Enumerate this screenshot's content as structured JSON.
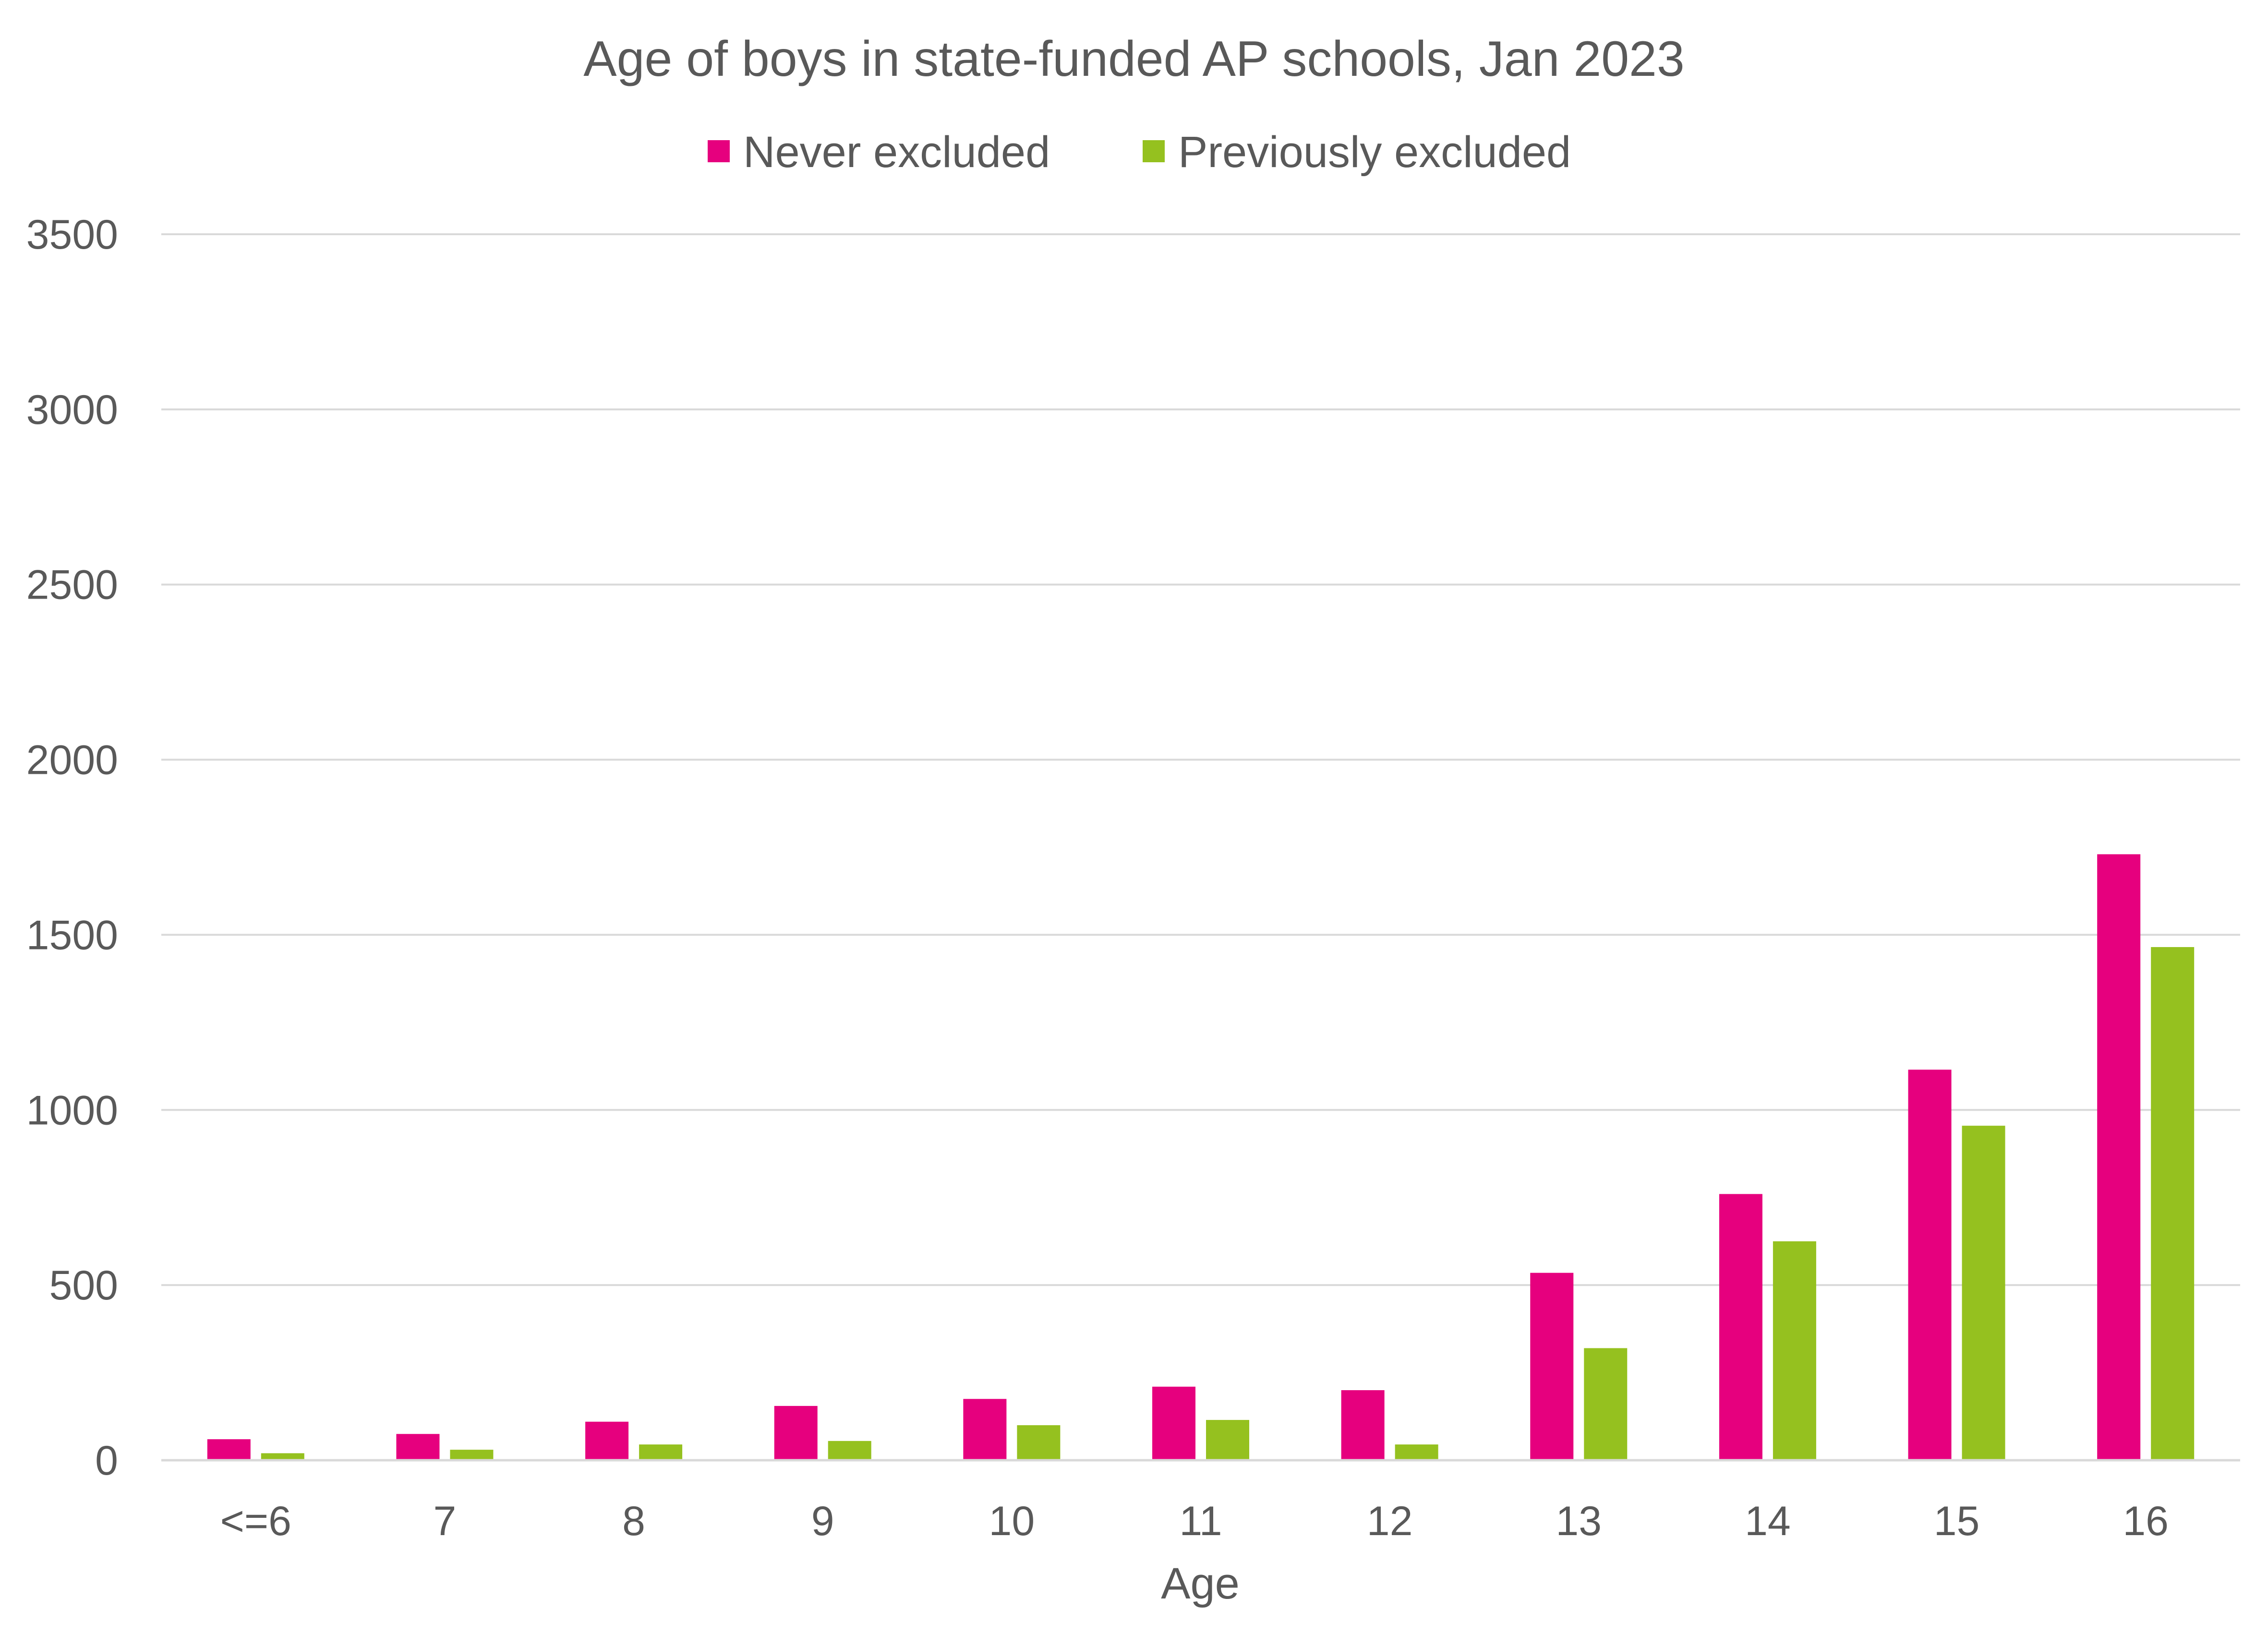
{
  "chart_data": {
    "type": "bar",
    "title": "Age of boys in state-funded AP schools, Jan 2023",
    "xlabel": "Age",
    "ylabel": "",
    "categories": [
      "<=6",
      "7",
      "8",
      "9",
      "10",
      "11",
      "12",
      "13",
      "14",
      "15",
      "16"
    ],
    "series": [
      {
        "name": "Never excluded",
        "color": "#e6007e",
        "values": [
          60,
          75,
          110,
          155,
          175,
          210,
          200,
          535,
          760,
          1115,
          1730
        ]
      },
      {
        "name": "Previously excluded",
        "color": "#95c11f",
        "values": [
          20,
          30,
          45,
          55,
          100,
          115,
          45,
          320,
          625,
          955,
          1465
        ]
      }
    ],
    "ylim": [
      0,
      3500
    ],
    "yticks": [
      0,
      500,
      1000,
      1500,
      2000,
      2500,
      3000,
      3500
    ],
    "grid": true,
    "legend_position": "top"
  }
}
